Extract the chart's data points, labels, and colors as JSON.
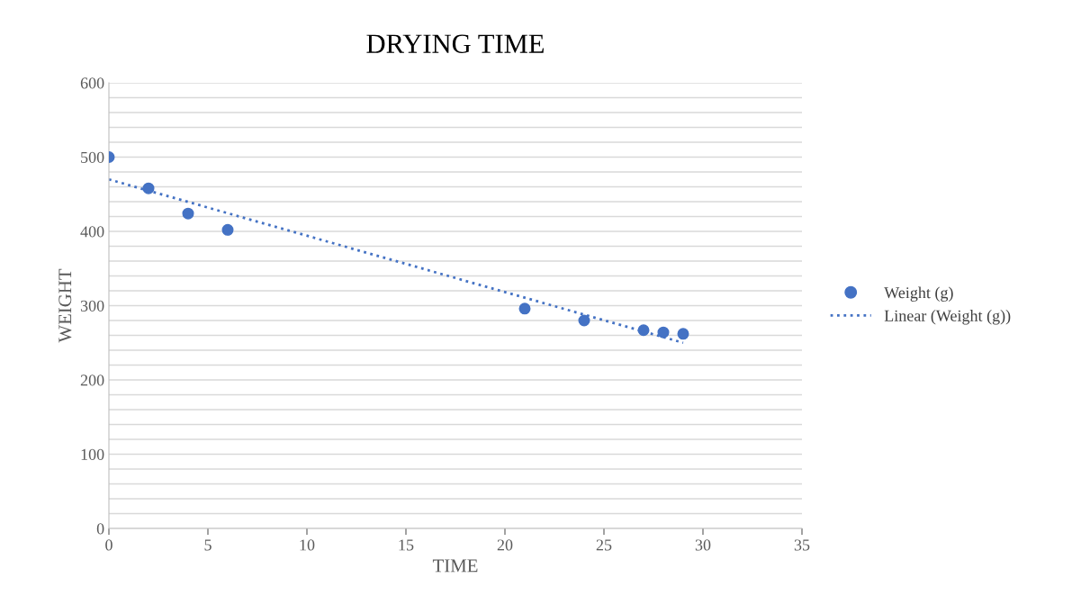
{
  "chart_data": {
    "type": "scatter",
    "title": "DRYING TIME",
    "xlabel": "TIME",
    "ylabel": "WEIGHT",
    "series": [
      {
        "name": "Weight (g)",
        "color": "#4472c4",
        "marker": "circle",
        "x": [
          0,
          2,
          4,
          6,
          21,
          24,
          27,
          28,
          29
        ],
        "values": [
          500,
          458,
          424,
          402,
          296,
          280,
          267,
          264,
          262
        ]
      },
      {
        "name": "Linear (Weight (g))",
        "type": "line",
        "color": "#4472c4",
        "line_style": "dotted",
        "marker": "none",
        "x": [
          0,
          29
        ],
        "values": [
          470,
          250
        ]
      }
    ],
    "xlim": [
      0,
      35
    ],
    "xticks": [
      0,
      5,
      10,
      15,
      20,
      25,
      30,
      35
    ],
    "ylim": [
      0,
      600
    ],
    "yticks": [
      0,
      {
        "value": 20,
        "label": null
      },
      {
        "value": 40,
        "label": null
      },
      {
        "value": 60,
        "label": null
      },
      {
        "value": 80,
        "label": null
      },
      100,
      {
        "value": 120,
        "label": null
      },
      {
        "value": 140,
        "label": null
      },
      {
        "value": 160,
        "label": null
      },
      {
        "value": 180,
        "label": null
      },
      200,
      {
        "value": 220,
        "label": null
      },
      {
        "value": 240,
        "label": null
      },
      {
        "value": 260,
        "label": null
      },
      {
        "value": 280,
        "label": null
      },
      300,
      {
        "value": 320,
        "label": null
      },
      {
        "value": 340,
        "label": null
      },
      {
        "value": 360,
        "label": null
      },
      {
        "value": 380,
        "label": null
      },
      400,
      {
        "value": 420,
        "label": null
      },
      {
        "value": 440,
        "label": null
      },
      {
        "value": 460,
        "label": null
      },
      {
        "value": 480,
        "label": null
      },
      500,
      {
        "value": 520,
        "label": null
      },
      {
        "value": 540,
        "label": null
      },
      {
        "value": 560,
        "label": null
      },
      {
        "value": 580,
        "label": null
      },
      600
    ],
    "grid": "y",
    "legend": "right"
  }
}
